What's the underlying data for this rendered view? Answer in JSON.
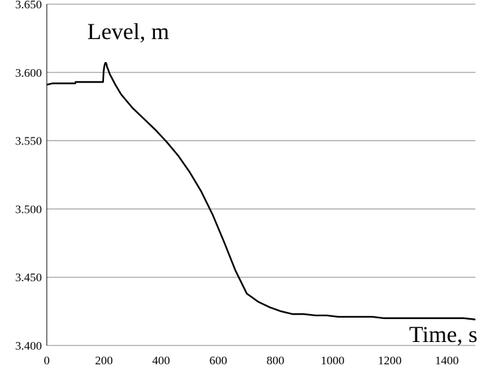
{
  "chart_data": {
    "type": "line",
    "title": "",
    "xlabel": "Time, s",
    "ylabel": "Level, m",
    "xlim": [
      0,
      1500
    ],
    "ylim": [
      3.4,
      3.65
    ],
    "grid": "horizontal",
    "x_ticks": [
      "0",
      "200",
      "400",
      "600",
      "800",
      "1000",
      "1200",
      "1400"
    ],
    "y_ticks": [
      "3.400",
      "3.450",
      "3.500",
      "3.550",
      "3.600",
      "3.650"
    ],
    "series": [
      {
        "color": "#000000",
        "x": [
          0,
          20,
          40,
          60,
          100,
          100.5,
          150,
          195,
          197,
          199,
          201,
          203,
          205,
          207,
          209,
          211,
          215,
          220,
          240,
          260,
          280,
          300,
          340,
          380,
          420,
          460,
          500,
          540,
          580,
          620,
          660,
          700,
          740,
          780,
          820,
          860,
          900,
          940,
          980,
          1020,
          1060,
          1100,
          1140,
          1180,
          1220,
          1260,
          1300,
          1340,
          1380,
          1420,
          1460,
          1500
        ],
        "y": [
          3.591,
          3.592,
          3.592,
          3.592,
          3.592,
          3.593,
          3.593,
          3.593,
          3.593,
          3.601,
          3.604,
          3.606,
          3.607,
          3.607,
          3.606,
          3.604,
          3.602,
          3.599,
          3.591,
          3.584,
          3.579,
          3.574,
          3.566,
          3.558,
          3.549,
          3.539,
          3.527,
          3.513,
          3.496,
          3.476,
          3.455,
          3.438,
          3.432,
          3.428,
          3.425,
          3.423,
          3.423,
          3.422,
          3.422,
          3.421,
          3.421,
          3.421,
          3.421,
          3.42,
          3.42,
          3.42,
          3.42,
          3.42,
          3.42,
          3.42,
          3.42,
          3.419
        ]
      }
    ]
  }
}
